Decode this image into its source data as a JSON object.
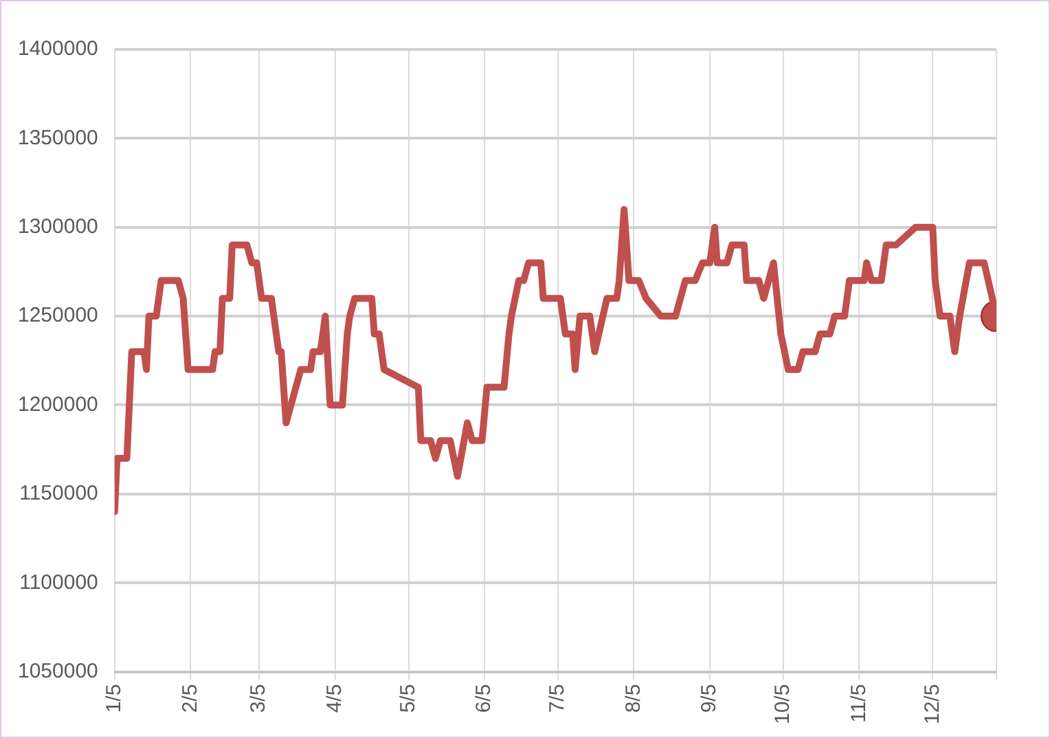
{
  "chart_data": {
    "type": "line",
    "x": [
      "--01-05",
      "--01-06",
      "--01-10",
      "--01-12",
      "--01-17",
      "--01-18",
      "--01-19",
      "--01-22",
      "--01-24",
      "--01-31",
      "--02-02",
      "--02-04",
      "--02-14",
      "--02-15",
      "--02-17",
      "--02-18",
      "--02-21",
      "--02-22",
      "--02-28",
      "--03-02",
      "--03-04",
      "--03-06",
      "--03-10",
      "--03-13",
      "--03-14",
      "--03-16",
      "--03-22",
      "--03-26",
      "--03-27",
      "--03-30",
      "--04-01",
      "--04-03",
      "--04-08",
      "--04-10",
      "--04-11",
      "--04-13",
      "--04-20",
      "--04-21",
      "--04-23",
      "--04-25",
      "--05-09",
      "--05-10",
      "--05-14",
      "--05-16",
      "--05-18",
      "--05-22",
      "--05-25",
      "--05-29",
      "--05-31",
      "--06-04",
      "--06-06",
      "--06-13",
      "--06-15",
      "--06-16",
      "--06-19",
      "--06-21",
      "--06-23",
      "--06-28",
      "--06-29",
      "--07-04",
      "--07-06",
      "--07-08",
      "--07-11",
      "--07-12",
      "--07-14",
      "--07-18",
      "--07-20",
      "--07-25",
      "--07-29",
      "--07-30",
      "--08-01",
      "--08-03",
      "--08-07",
      "--08-10",
      "--08-16",
      "--08-22",
      "--08-24",
      "--08-26",
      "--08-30",
      "--09-02",
      "--09-05",
      "--09-07",
      "--09-08",
      "--09-12",
      "--09-14",
      "--09-19",
      "--09-20",
      "--09-25",
      "--09-27",
      "--10-01",
      "--10-04",
      "--10-07",
      "--10-11",
      "--10-13",
      "--10-18",
      "--10-20",
      "--10-24",
      "--10-26",
      "--10-30",
      "--11-01",
      "--11-07",
      "--11-08",
      "--11-10",
      "--11-14",
      "--11-16",
      "--11-20",
      "--11-28",
      "--12-05",
      "--12-06",
      "--12-08",
      "--12-12",
      "--12-14",
      "--12-16",
      "--12-20",
      "--12-26",
      "--12-31"
    ],
    "series": [
      {
        "color": "#c0504d",
        "marker": "none",
        "values": [
          1140000,
          1170000,
          1170000,
          1230000,
          1230000,
          1220000,
          1250000,
          1250000,
          1270000,
          1270000,
          1260000,
          1220000,
          1220000,
          1230000,
          1230000,
          1260000,
          1260000,
          1290000,
          1290000,
          1280000,
          1280000,
          1260000,
          1260000,
          1230000,
          1230000,
          1190000,
          1220000,
          1220000,
          1230000,
          1230000,
          1250000,
          1200000,
          1200000,
          1240000,
          1250000,
          1260000,
          1260000,
          1240000,
          1240000,
          1220000,
          1210000,
          1180000,
          1180000,
          1170000,
          1180000,
          1180000,
          1160000,
          1190000,
          1180000,
          1180000,
          1210000,
          1210000,
          1240000,
          1250000,
          1270000,
          1270000,
          1280000,
          1280000,
          1260000,
          1260000,
          1260000,
          1240000,
          1240000,
          1220000,
          1250000,
          1250000,
          1230000,
          1260000,
          1260000,
          1270000,
          1310000,
          1270000,
          1270000,
          1260000,
          1250000,
          1250000,
          1260000,
          1270000,
          1270000,
          1280000,
          1280000,
          1300000,
          1280000,
          1280000,
          1290000,
          1290000,
          1270000,
          1270000,
          1260000,
          1280000,
          1240000,
          1220000,
          1220000,
          1230000,
          1230000,
          1240000,
          1240000,
          1250000,
          1250000,
          1270000,
          1270000,
          1280000,
          1270000,
          1270000,
          1290000,
          1290000,
          1300000,
          1300000,
          1270000,
          1250000,
          1250000,
          1230000,
          1250000,
          1280000,
          1280000,
          1250000
        ]
      },
      {
        "type": "scatter",
        "color": "#c0504d",
        "marker": "circle",
        "x": [
          "--12-31"
        ],
        "values": [
          1250000
        ]
      }
    ],
    "xlim": [
      "--01-05",
      "--12-31"
    ],
    "xticks": [
      {
        "value": "--01-05",
        "label": "1/5"
      },
      {
        "value": "--02-05",
        "label": "2/5"
      },
      {
        "value": "--03-05",
        "label": "3/5"
      },
      {
        "value": "--04-05",
        "label": "4/5"
      },
      {
        "value": "--05-05",
        "label": "5/5"
      },
      {
        "value": "--06-05",
        "label": "6/5"
      },
      {
        "value": "--07-05",
        "label": "7/5"
      },
      {
        "value": "--08-05",
        "label": "8/5"
      },
      {
        "value": "--09-05",
        "label": "9/5"
      },
      {
        "value": "--10-05",
        "label": "10/5"
      },
      {
        "value": "--11-05",
        "label": "11/5"
      },
      {
        "value": "--12-05",
        "label": "12/5"
      },
      {
        "value": "--12-31",
        "label": null
      }
    ],
    "ylim": [
      1050000,
      1400000
    ],
    "yticks": [
      1050000,
      1100000,
      1150000,
      1200000,
      1250000,
      1300000,
      1350000,
      1400000
    ],
    "grid": true,
    "legend": false,
    "line_style": "solid"
  }
}
